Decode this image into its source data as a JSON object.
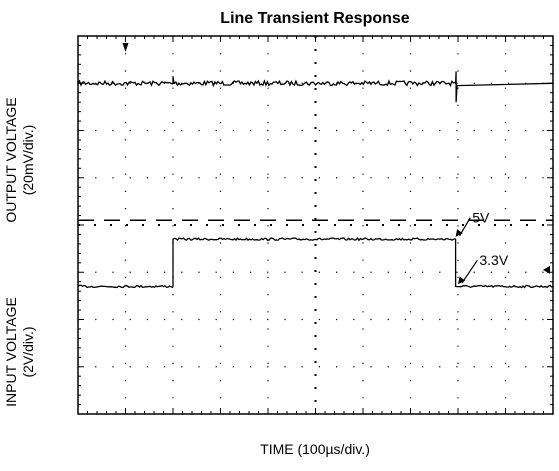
{
  "chart_data": {
    "type": "line",
    "title": "Line Transient Response",
    "xlabel": "TIME (100µs/div.)",
    "ylabels": {
      "output": [
        "OUTPUT VOLTAGE",
        "(20mV/div.)"
      ],
      "input": [
        "INPUT VOLTAGE",
        "(2V/div.)"
      ]
    },
    "x_divisions": 10,
    "y_divisions": 8,
    "grid": "dotted",
    "xlim": [
      0,
      10
    ],
    "ylim": [
      0,
      8
    ],
    "series": [
      {
        "values_x": [
          0,
          2.0,
          2.0,
          2.02,
          2.03,
          7.95,
          7.96,
          7.96,
          7.98,
          10
        ],
        "values_y": [
          7.0,
          7.0,
          7.15,
          7.0,
          7.0,
          7.0,
          7.25,
          6.6,
          6.95,
          7.0
        ]
      },
      {
        "values_x": [
          0,
          2.0,
          2.0,
          7.95,
          7.95,
          10
        ],
        "values_y": [
          2.7,
          2.7,
          3.7,
          3.7,
          2.7,
          2.7
        ]
      }
    ],
    "reference_line_y": 4.1,
    "annotations": [
      {
        "text": "5V",
        "arrow_to": [
          7.95,
          3.75
        ]
      },
      {
        "text": "3.3V",
        "arrow_to": [
          8.0,
          2.75
        ]
      }
    ]
  }
}
